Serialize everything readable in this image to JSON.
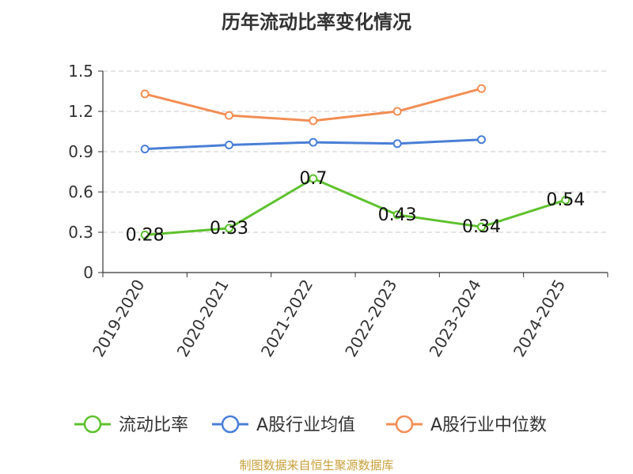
{
  "chart_data": {
    "type": "line",
    "title": "历年流动比率变化情况",
    "categories": [
      "2019-2020",
      "2020-2021",
      "2021-2022",
      "2022-2023",
      "2023-2024",
      "2024-2025"
    ],
    "ylim": [
      0,
      1.5
    ],
    "yticks": [
      "0",
      "0.3",
      "0.6",
      "0.9",
      "1.2",
      "1.5"
    ],
    "grid": true,
    "legend_position": "bottom",
    "series": [
      {
        "name": "流动比率",
        "color": "#5ec12e",
        "values": [
          0.28,
          0.33,
          0.7,
          0.43,
          0.34,
          0.54
        ],
        "labels": [
          "0.28",
          "0.33",
          "0.7",
          "0.43",
          "0.34",
          "0.54"
        ]
      },
      {
        "name": "A股行业均值",
        "color": "#4a7fd6",
        "values": [
          0.92,
          0.95,
          0.97,
          0.96,
          0.99,
          null
        ]
      },
      {
        "name": "A股行业中位数",
        "color": "#f28e55",
        "values": [
          1.33,
          1.17,
          1.13,
          1.2,
          1.37,
          null
        ]
      }
    ]
  },
  "footer": {
    "source": "制图数据来自恒生聚源数据库"
  }
}
